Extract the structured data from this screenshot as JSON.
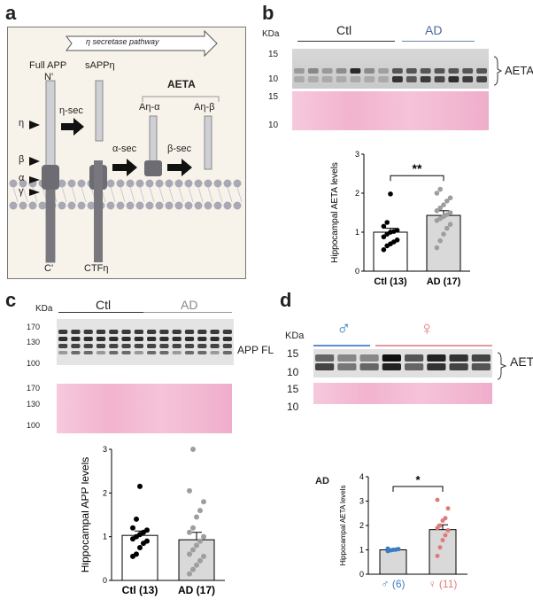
{
  "panels": {
    "a": {
      "letter": "a",
      "pathway_label": "η secretase pathway",
      "full_app": "Full APP",
      "sappeta": "sAPPη",
      "n_term": "N'",
      "c_term": "C'",
      "ctf": "CTFη",
      "aeta_title": "AETA",
      "eta_sec": "η-sec",
      "alpha_sec": "α-sec",
      "beta_sec": "β-sec",
      "a_eta_alpha": "Aη-α",
      "a_eta_beta": "Aη-β",
      "site_eta": "η",
      "site_beta": "β",
      "site_alpha": "α",
      "site_gamma": "γ"
    },
    "b": {
      "letter": "b",
      "kda": "KDa",
      "group_ctl": "Ctl",
      "group_ad": "AD",
      "mw_top": [
        "15",
        "10"
      ],
      "mw_bottom": [
        "15",
        "10"
      ],
      "band_label": "AETA",
      "significance": "**"
    },
    "c": {
      "letter": "c",
      "kda": "KDa",
      "group_ctl": "Ctl",
      "group_ad": "AD",
      "mw_top": [
        "170",
        "130",
        "100"
      ],
      "mw_bottom": [
        "170",
        "130",
        "100"
      ],
      "band_label": "APP FL"
    },
    "d": {
      "letter": "d",
      "kda": "KDa",
      "male_symbol": "♂",
      "female_symbol": "♀",
      "mw_top": [
        "15",
        "10"
      ],
      "mw_bottom": [
        "15",
        "10"
      ],
      "band_label": "AETA",
      "ad_tag": "AD",
      "significance": "*"
    }
  },
  "chart_data": [
    {
      "type": "bar",
      "panel": "b",
      "ylabel": "Hippocampal AETA levels",
      "categories": [
        "Ctl (13)",
        "AD (17)"
      ],
      "values": [
        1.0,
        1.43
      ],
      "sem": [
        0.1,
        0.12
      ],
      "ylim": [
        0,
        3
      ],
      "yticks": [
        "0",
        "1",
        "2",
        "3"
      ],
      "bar_colors": [
        "#ffffff",
        "#d9d9d9"
      ],
      "points": [
        [
          0.55,
          0.65,
          0.7,
          0.75,
          0.8,
          0.88,
          0.95,
          1.0,
          1.02,
          1.05,
          1.15,
          1.25,
          1.98
        ],
        [
          0.6,
          0.78,
          0.95,
          1.1,
          1.2,
          1.3,
          1.35,
          1.4,
          1.45,
          1.5,
          1.55,
          1.62,
          1.7,
          1.8,
          1.88,
          2.0,
          2.1
        ]
      ],
      "point_colors": [
        "#000000",
        "#9e9e9e"
      ],
      "significance": "**"
    },
    {
      "type": "bar",
      "panel": "c",
      "ylabel": "Hippocampal APP levels",
      "categories": [
        "Ctl (13)",
        "AD (17)"
      ],
      "values": [
        1.03,
        0.93
      ],
      "sem": [
        0.1,
        0.17
      ],
      "ylim": [
        0,
        3
      ],
      "yticks": [
        "0",
        "1",
        "2",
        "3"
      ],
      "bar_colors": [
        "#ffffff",
        "#d9d9d9"
      ],
      "points": [
        [
          0.55,
          0.6,
          0.75,
          0.85,
          0.9,
          0.95,
          1.0,
          1.05,
          1.1,
          1.15,
          1.2,
          1.4,
          2.15
        ],
        [
          0.15,
          0.25,
          0.35,
          0.45,
          0.55,
          0.6,
          0.7,
          0.8,
          0.9,
          1.0,
          1.1,
          1.2,
          1.45,
          1.6,
          1.8,
          2.05,
          3.0
        ]
      ],
      "point_colors": [
        "#000000",
        "#9e9e9e"
      ]
    },
    {
      "type": "bar",
      "panel": "d",
      "ylabel": "Hippocampal AETA levels",
      "categories": [
        "♂ (6)",
        "♀ (11)"
      ],
      "values": [
        1.0,
        1.83
      ],
      "sem": [
        0.03,
        0.2
      ],
      "ylim": [
        0,
        4
      ],
      "yticks": [
        "0",
        "1",
        "2",
        "3",
        "4"
      ],
      "bar_colors": [
        "#d9d9d9",
        "#d9d9d9"
      ],
      "points": [
        [
          0.95,
          0.98,
          1.0,
          1.01,
          1.03,
          1.05
        ],
        [
          0.75,
          1.1,
          1.4,
          1.6,
          1.8,
          1.9,
          2.0,
          2.2,
          2.3,
          2.7,
          3.05
        ]
      ],
      "point_colors": [
        "#3b7dc4",
        "#e07b7b"
      ],
      "label_colors": [
        "#3b7dc4",
        "#e07b7b"
      ],
      "significance": "*"
    }
  ]
}
